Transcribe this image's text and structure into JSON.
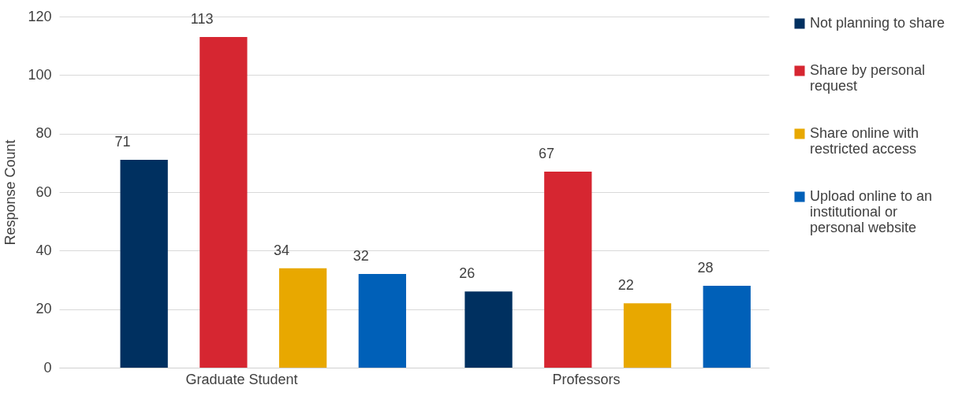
{
  "chart_data": {
    "type": "bar",
    "ylabel": "Response Count",
    "categories": [
      "Graduate Student",
      "Professors"
    ],
    "series": [
      {
        "name": "Not planning to share",
        "color": "#003060",
        "values": [
          71,
          26
        ]
      },
      {
        "name": "Share by personal request",
        "color": "#d62631",
        "values": [
          113,
          67
        ]
      },
      {
        "name": "Share online with restricted access",
        "color": "#e8a800",
        "values": [
          34,
          22
        ]
      },
      {
        "name": "Upload online to an institutional or personal website",
        "color": "#0060b8",
        "values": [
          32,
          28
        ]
      }
    ],
    "ylim": [
      0,
      120
    ],
    "yticks": [
      0,
      20,
      40,
      60,
      80,
      100,
      120
    ],
    "grid": "y",
    "legend": "right",
    "data_labels": true
  }
}
